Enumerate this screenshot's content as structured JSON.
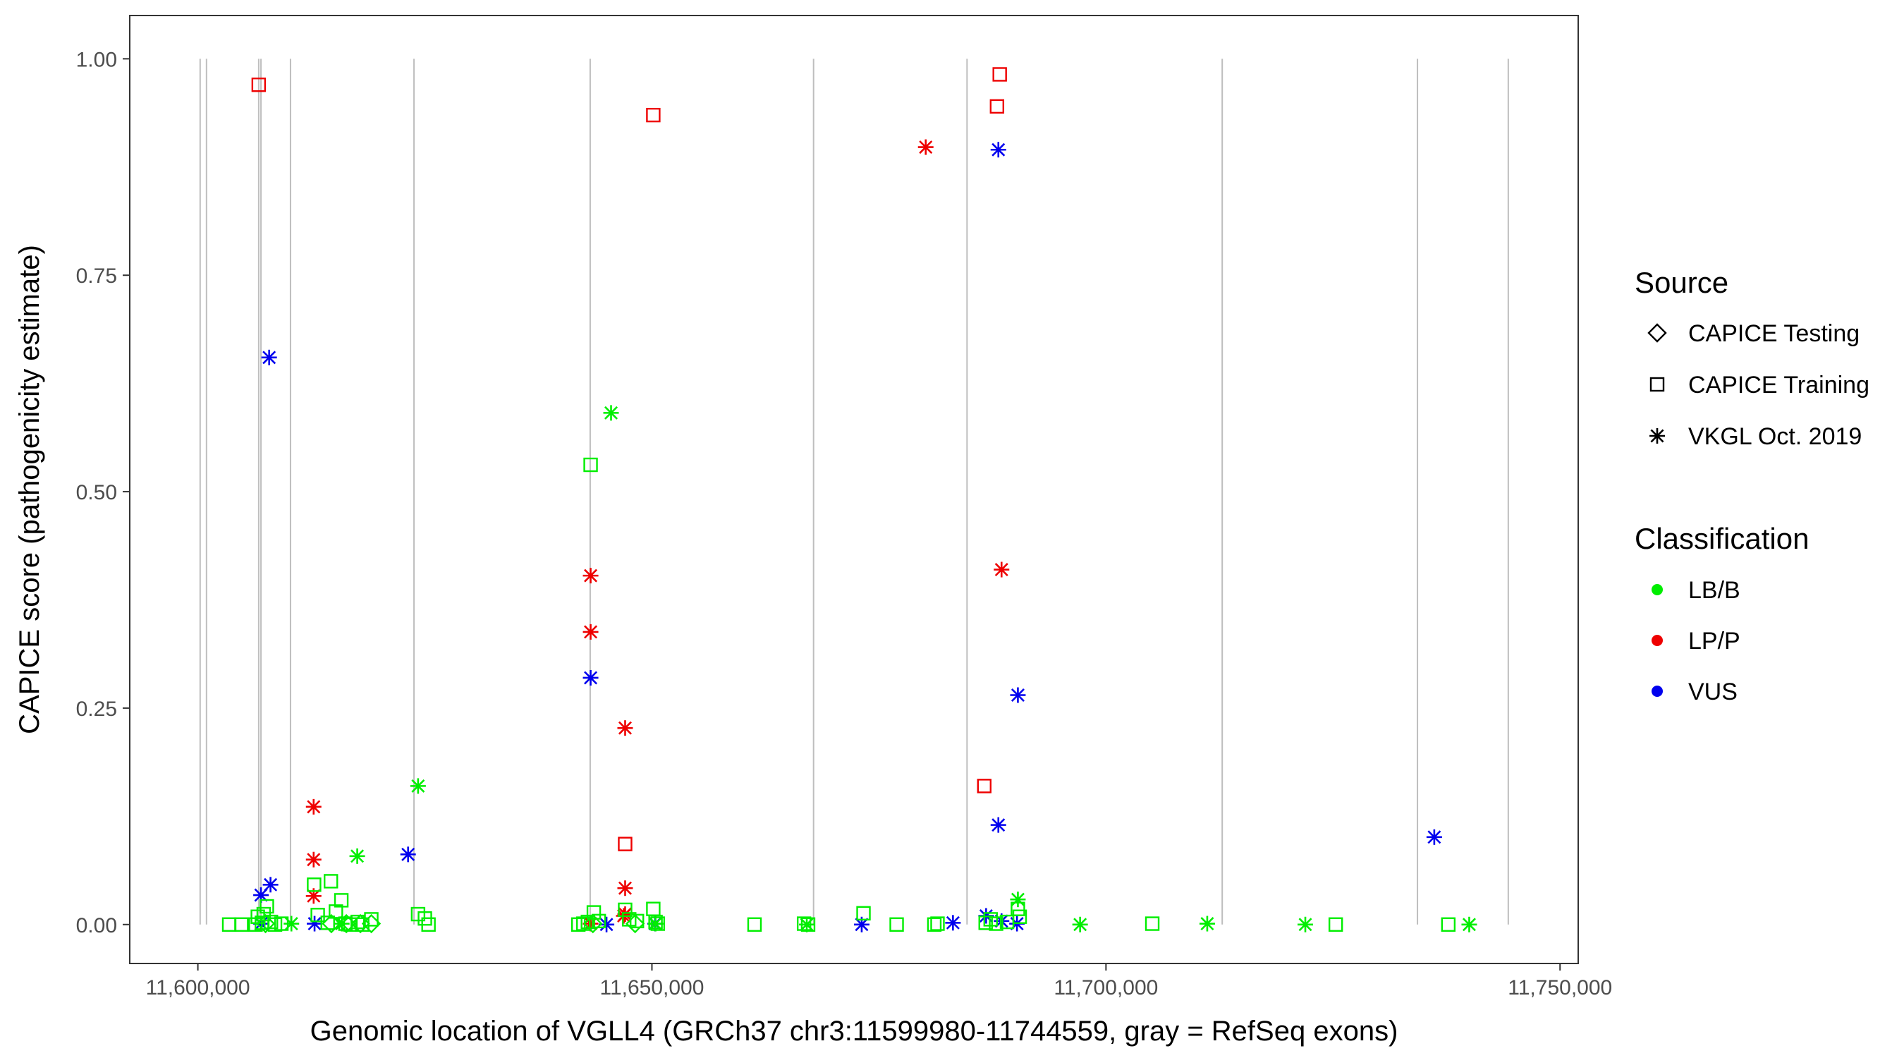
{
  "chart_data": {
    "type": "scatter",
    "xlabel": "Genomic location of VGLL4 (GRCh37 chr3:11599980-11744559, gray = RefSeq exons)",
    "ylabel": "CAPICE score (pathogenicity estimate)",
    "xlim": [
      11592500,
      11752000
    ],
    "ylim": [
      -0.045,
      1.05
    ],
    "x_ticks": [
      11600000,
      11650000,
      11700000,
      11750000
    ],
    "x_tick_labels": [
      "11,600,000",
      "11,650,000",
      "11,700,000",
      "11,750,000"
    ],
    "y_ticks": [
      0,
      0.25,
      0.5,
      0.75,
      1
    ],
    "y_tick_labels": [
      "0.00",
      "0.25",
      "0.50",
      "0.75",
      "1.00"
    ],
    "grid": false,
    "exon_lines": [
      11600250,
      11600950,
      11606700,
      11606950,
      11610200,
      11623800,
      11643200,
      11667800,
      11684700,
      11712800,
      11734300,
      11744300
    ],
    "legend_position": "right",
    "legend_source": {
      "title": "Source",
      "items": [
        {
          "label": "CAPICE Testing",
          "shape": "diamond"
        },
        {
          "label": "CAPICE Training",
          "shape": "square"
        },
        {
          "label": "VKGL Oct. 2019",
          "shape": "asterisk"
        }
      ]
    },
    "legend_classification": {
      "title": "Classification",
      "items": [
        {
          "label": "LB/B",
          "color": "#00ee00"
        },
        {
          "label": "LP/P",
          "color": "#ee0000"
        },
        {
          "label": "VUS",
          "color": "#0000ee"
        }
      ]
    },
    "series": [
      {
        "class": "LP/P",
        "source": "CAPICE Training",
        "color": "#ee0000",
        "shape": "square",
        "x": [
          11606700,
          11650150,
          11688300,
          11688000,
          11686600,
          11647050
        ],
        "y": [
          0.97,
          0.935,
          0.982,
          0.945,
          0.16,
          0.093
        ]
      },
      {
        "class": "LP/P",
        "source": "VKGL Oct. 2019",
        "color": "#ee0000",
        "shape": "asterisk",
        "x": [
          11680150,
          11688500,
          11643250,
          11643250,
          11647050,
          11612750,
          11612750,
          11612750,
          11647050,
          11647050,
          11646900,
          11643250
        ],
        "y": [
          0.898,
          0.41,
          0.403,
          0.338,
          0.227,
          0.136,
          0.075,
          0.033,
          0.042,
          0.012,
          0.01,
          0.001
        ]
      },
      {
        "class": "VUS",
        "source": "VKGL Oct. 2019",
        "color": "#0000ee",
        "shape": "asterisk",
        "x": [
          11688150,
          11607850,
          11643250,
          11690300,
          11688150,
          11736150,
          11623150,
          11608000,
          11606950,
          11606950,
          11612850,
          11645000,
          11650350,
          11673100,
          11683150,
          11686800,
          11688500,
          11690200
        ],
        "y": [
          0.895,
          0.655,
          0.285,
          0.265,
          0.115,
          0.101,
          0.081,
          0.046,
          0.034,
          0.001,
          0.001,
          0.0,
          0.001,
          0.0,
          0.002,
          0.01,
          0.004,
          0.001
        ]
      },
      {
        "class": "LB/B",
        "source": "VKGL Oct. 2019",
        "color": "#00ee00",
        "shape": "asterisk",
        "x": [
          11645500,
          11624250,
          11617550,
          11690300,
          11610300,
          11667050,
          11697150,
          11711150,
          11721950,
          11740000,
          11615850,
          11650400
        ],
        "y": [
          0.591,
          0.16,
          0.079,
          0.029,
          0.001,
          0.0,
          0.0,
          0.001,
          0.0,
          0.0,
          0.001,
          0.001
        ]
      },
      {
        "class": "LB/B",
        "source": "CAPICE Training",
        "color": "#00ee00",
        "shape": "square",
        "x": [
          11643250,
          11603450,
          11604800,
          11606350,
          11606600,
          11607050,
          11607250,
          11607600,
          11608050,
          11608500,
          11609200,
          11612800,
          11613200,
          11614650,
          11614300,
          11615200,
          11615800,
          11616250,
          11616800,
          11617600,
          11618100,
          11619100,
          11624250,
          11625000,
          11625400,
          11641900,
          11642450,
          11642950,
          11643600,
          11644150,
          11647050,
          11647500,
          11648350,
          11650150,
          11650400,
          11650650,
          11661300,
          11666750,
          11667200,
          11673300,
          11676950,
          11681100,
          11681450,
          11686750,
          11687300,
          11687900,
          11689100,
          11690300,
          11690500,
          11705100,
          11725300,
          11737700
        ],
        "y": [
          0.531,
          0.0,
          0.0,
          0.0,
          0.009,
          0.002,
          0.012,
          0.021,
          0.003,
          0.0,
          0.001,
          0.046,
          0.011,
          0.05,
          0.002,
          0.015,
          0.028,
          0.001,
          0.0,
          0.003,
          0.0,
          0.006,
          0.012,
          0.007,
          0.0,
          0.0,
          0.001,
          0.003,
          0.014,
          0.004,
          0.017,
          0.006,
          0.004,
          0.018,
          0.003,
          0.001,
          0.0,
          0.001,
          0.0,
          0.013,
          0.0,
          0.0,
          0.001,
          0.002,
          0.006,
          0.001,
          0.003,
          0.018,
          0.009,
          0.001,
          0.0,
          0.0
        ]
      },
      {
        "class": "LB/B",
        "source": "CAPICE Testing",
        "color": "#00ee00",
        "shape": "diamond",
        "x": [
          11607450,
          11614700,
          11616350,
          11617900,
          11619100,
          11643500,
          11648150
        ],
        "y": [
          0.001,
          0.001,
          0.001,
          0.001,
          0.001,
          0.001,
          0.001
        ]
      }
    ]
  }
}
